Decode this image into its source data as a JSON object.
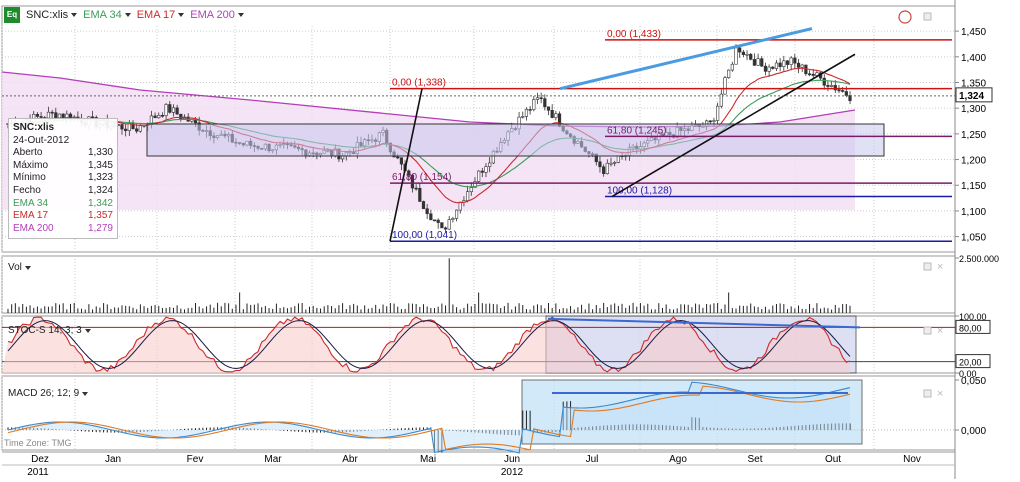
{
  "toolbar": {
    "symbol_icon_text": "Eq",
    "symbol": "SNC:xlis",
    "indicators": [
      {
        "label": "EMA 34",
        "color": "#3a9d58"
      },
      {
        "label": "EMA 17",
        "color": "#cc2a2a"
      },
      {
        "label": "EMA 200",
        "color": "#b23fb8"
      }
    ]
  },
  "legend": {
    "title": "SNC:xlis",
    "date": "24-Out-2012",
    "rows": [
      {
        "label": "Aberto",
        "value": "1,330",
        "color": "#222222"
      },
      {
        "label": "Máximo",
        "value": "1,345",
        "color": "#222222"
      },
      {
        "label": "Mínimo",
        "value": "1,323",
        "color": "#222222"
      },
      {
        "label": "Fecho",
        "value": "1,324",
        "color": "#222222"
      },
      {
        "label": "EMA 34",
        "value": "1,342",
        "color": "#3a9d58"
      },
      {
        "label": "EMA 17",
        "value": "1,357",
        "color": "#cc2a2a"
      },
      {
        "label": "EMA 200",
        "value": "1,279",
        "color": "#b23fb8"
      }
    ]
  },
  "panels": {
    "vol": {
      "label": "Vol"
    },
    "stoch": {
      "label": "STOC-S 14; 3; 3"
    },
    "macd": {
      "label": "MACD 26; 12; 9"
    }
  },
  "watermark": "Time Zone: TMG",
  "colors": {
    "up_candle": "#2f9a3a",
    "down_candle": "#c62828",
    "ema34": "#3a9d58",
    "ema17": "#cc2a2a",
    "ema200": "#b23fb8",
    "blue_trend": "#4a9be0",
    "fib_red": "#cc1111",
    "fib_purple": "#7a1a6a",
    "fib_blue": "#1a1aa8",
    "box_fill": "#c8c8ee",
    "macd_box": "#bfe0f7",
    "grid": "#cccccc"
  },
  "chart_data": [
    {
      "type": "candlestick",
      "title": "SNC:xlis",
      "ylim": [
        1.02,
        1.46
      ],
      "y_ticks": [
        "1,050",
        "1,100",
        "1,150",
        "1,200",
        "1,250",
        "1,300",
        "1,350",
        "1,400",
        "1,450"
      ],
      "last_price": "1,324",
      "x_months": [
        "Dez",
        "Jan",
        "Fev",
        "Mar",
        "Abr",
        "Mai",
        "Jun",
        "Jul",
        "Ago",
        "Set",
        "Out",
        "Nov"
      ],
      "x_years": [
        "2011",
        "2012"
      ],
      "close_path_approx": [
        {
          "date": "2011-12-01",
          "close": 1.27
        },
        {
          "date": "2011-12-20",
          "close": 1.29
        },
        {
          "date": "2012-01-05",
          "close": 1.27
        },
        {
          "date": "2012-01-20",
          "close": 1.26
        },
        {
          "date": "2012-02-01",
          "close": 1.3
        },
        {
          "date": "2012-02-15",
          "close": 1.26
        },
        {
          "date": "2012-03-01",
          "close": 1.23
        },
        {
          "date": "2012-03-20",
          "close": 1.22
        },
        {
          "date": "2012-04-10",
          "close": 1.21
        },
        {
          "date": "2012-04-25",
          "close": 1.25
        },
        {
          "date": "2012-05-10",
          "close": 1.12
        },
        {
          "date": "2012-05-18",
          "close": 1.06
        },
        {
          "date": "2012-05-28",
          "close": 1.14
        },
        {
          "date": "2012-06-12",
          "close": 1.25
        },
        {
          "date": "2012-06-25",
          "close": 1.32
        },
        {
          "date": "2012-07-05",
          "close": 1.26
        },
        {
          "date": "2012-07-20",
          "close": 1.18
        },
        {
          "date": "2012-08-01",
          "close": 1.22
        },
        {
          "date": "2012-08-15",
          "close": 1.25
        },
        {
          "date": "2012-08-31",
          "close": 1.27
        },
        {
          "date": "2012-09-10",
          "close": 1.42
        },
        {
          "date": "2012-09-20",
          "close": 1.38
        },
        {
          "date": "2012-10-01",
          "close": 1.39
        },
        {
          "date": "2012-10-15",
          "close": 1.35
        },
        {
          "date": "2012-10-24",
          "close": 1.324
        }
      ],
      "fibonacci_levels": [
        {
          "label": "0,00 (1,338)",
          "value": 1.338,
          "group": "A"
        },
        {
          "label": "61,80 (1,154)",
          "value": 1.154,
          "group": "A"
        },
        {
          "label": "100,00 (1,041)",
          "value": 1.041,
          "group": "A"
        },
        {
          "label": "0,00 (1,433)",
          "value": 1.433,
          "group": "B"
        },
        {
          "label": "61,80 (1,245)",
          "value": 1.245,
          "group": "B"
        },
        {
          "label": "100,00 (1,128)",
          "value": 1.128,
          "group": "B"
        }
      ]
    },
    {
      "type": "bar",
      "title": "Vol",
      "ylim": [
        0,
        2500000
      ],
      "y_ticks": [
        "2.500.000"
      ]
    },
    {
      "type": "line",
      "title": "STOC-S 14; 3; 3",
      "ylim": [
        0,
        100
      ],
      "y_ticks": [
        "100,00",
        "80,00",
        "20,00",
        "0,00"
      ]
    },
    {
      "type": "line",
      "title": "MACD 26; 12; 9",
      "y_ticks": [
        "0,050",
        "0,000"
      ]
    }
  ]
}
